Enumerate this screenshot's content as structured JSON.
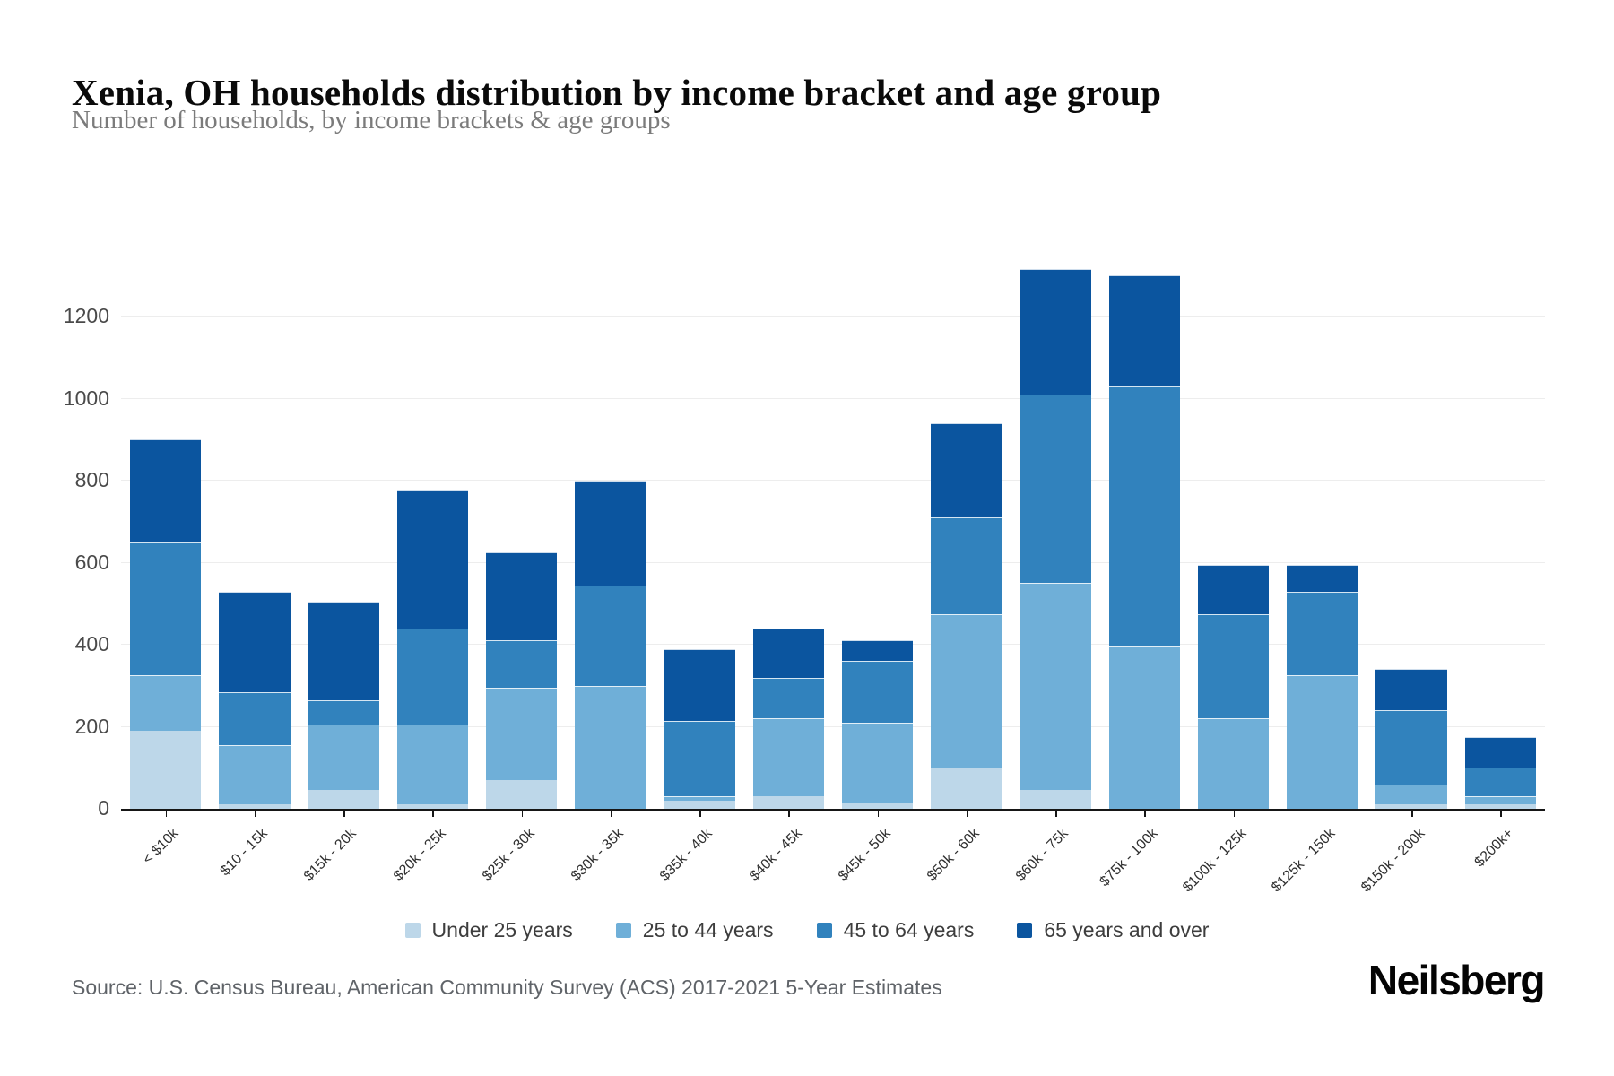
{
  "header": {
    "title": "Xenia, OH households distribution by income bracket and age group",
    "subtitle": "Number of households, by income brackets & age groups"
  },
  "footer": {
    "source": "Source: U.S. Census Bureau, American Community Survey (ACS) 2017-2021 5-Year Estimates",
    "brand": "Neilsberg"
  },
  "chart_data": {
    "type": "bar",
    "stacked": true,
    "title": "Xenia, OH households distribution by income bracket and age group",
    "xlabel": "",
    "ylabel": "Number of households",
    "grid": true,
    "legend_position": "bottom",
    "ylim": [
      0,
      1420
    ],
    "yticks": [
      0,
      200,
      400,
      600,
      800,
      1000,
      1200
    ],
    "categories": [
      "< $10k",
      "$10 - 15k",
      "$15k - 20k",
      "$20k - 25k",
      "$25k - 30k",
      "$30k - 35k",
      "$35k - 40k",
      "$40k - 45k",
      "$45k - 50k",
      "$50k - 60k",
      "$60k - 75k",
      "$75k - 100k",
      "$100k - 125k",
      "$125k - 150k",
      "$150k - 200k",
      "$200k+"
    ],
    "series": [
      {
        "name": "Under 25 years",
        "color": "#bdd7e9",
        "values": [
          190,
          10,
          45,
          10,
          70,
          0,
          20,
          30,
          15,
          100,
          45,
          0,
          0,
          0,
          10,
          10
        ]
      },
      {
        "name": "25 to 44 years",
        "color": "#6fafd8",
        "values": [
          135,
          145,
          160,
          195,
          225,
          300,
          10,
          190,
          195,
          375,
          505,
          395,
          220,
          325,
          50,
          20
        ]
      },
      {
        "name": "45 to 64 years",
        "color": "#3182bd",
        "values": [
          325,
          130,
          60,
          235,
          115,
          245,
          185,
          100,
          150,
          235,
          460,
          635,
          255,
          205,
          180,
          70
        ]
      },
      {
        "name": "65 years and over",
        "color": "#0b559f",
        "values": [
          250,
          245,
          240,
          335,
          215,
          255,
          175,
          120,
          50,
          230,
          305,
          270,
          120,
          65,
          100,
          75
        ]
      }
    ],
    "totals": [
      900,
      530,
      505,
      775,
      625,
      800,
      390,
      440,
      410,
      940,
      1315,
      1300,
      595,
      595,
      340,
      175
    ]
  }
}
